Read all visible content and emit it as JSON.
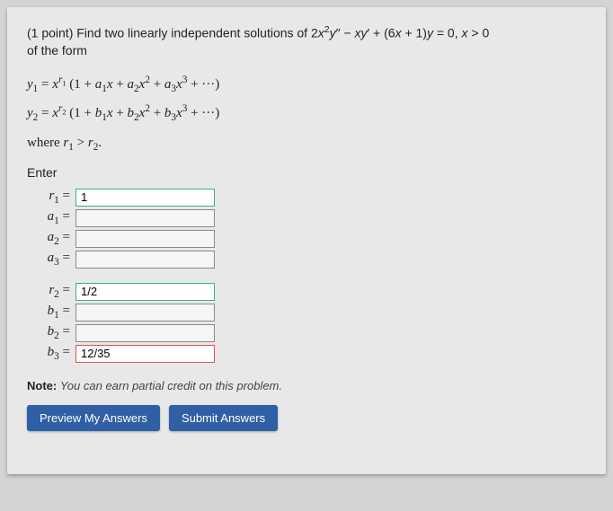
{
  "problem": {
    "points_label": "(1 point)",
    "prompt_html": "Find two linearly independent solutions of 2x²y″ − xy′ + (6x + 1)y = 0, x > 0 of the form",
    "y1_html": "y₁ = xʳ¹ (1 + a₁x + a₂x² + a₃x³ + ···)",
    "y2_html": "y₂ = xʳ² (1 + b₁x + b₂x² + b₃x³ + ···)",
    "where_html": "where r₁ > r₂.",
    "enter_label": "Enter"
  },
  "fields": {
    "r1": {
      "label_html": "r₁ =",
      "value": "1",
      "state": "correct"
    },
    "a1": {
      "label_html": "a₁ =",
      "value": "",
      "state": "plain"
    },
    "a2": {
      "label_html": "a₂ =",
      "value": "",
      "state": "plain"
    },
    "a3": {
      "label_html": "a₃ =",
      "value": "",
      "state": "plain"
    },
    "r2": {
      "label_html": "r₂ =",
      "value": "1/2",
      "state": "correct"
    },
    "b1": {
      "label_html": "b₁ =",
      "value": "",
      "state": "plain"
    },
    "b2": {
      "label_html": "b₂ =",
      "value": "",
      "state": "plain"
    },
    "b3": {
      "label_html": "b₃ =",
      "value": "12/35",
      "state": "wrong"
    }
  },
  "note": {
    "bold": "Note:",
    "text": "You can earn partial credit on this problem."
  },
  "buttons": {
    "preview": "Preview My Answers",
    "submit": "Submit Answers"
  },
  "colors": {
    "panel_bg": "#e8e8e8",
    "body_bg": "#d4d4d4",
    "btn_bg": "#2f5fa5",
    "correct_border": "#3cb371",
    "wrong_border": "#d9534f"
  }
}
